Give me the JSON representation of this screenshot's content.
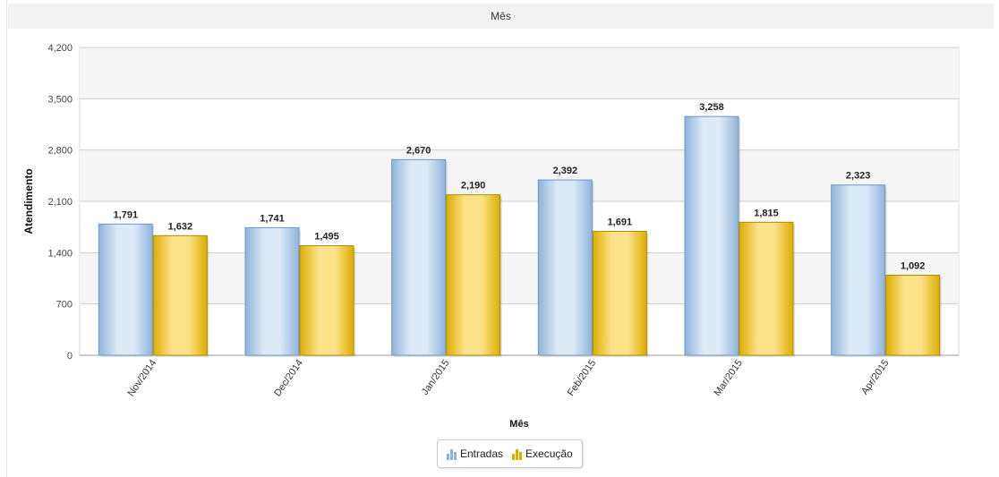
{
  "header": {
    "title": "Mês"
  },
  "colors": {
    "entradas_light": "#dceaf7",
    "entradas_dark": "#8fb4da",
    "entradas_border": "#6f97c2",
    "execucao_light": "#fce38a",
    "execucao_dark": "#dcae00",
    "execucao_border": "#b08a00",
    "plot_band": "#f5f5f5",
    "grid": "#cfcfcf"
  },
  "legend": {
    "entradas_label": "Entradas",
    "entradas_icon": "bar-chart-icon",
    "execucao_label": "Execução",
    "execucao_icon": "bar-chart-icon"
  },
  "chart_data": {
    "type": "bar",
    "title": "",
    "xlabel": "Mês",
    "ylabel": "Atendimento",
    "categories": [
      "Nov/2014",
      "Dec/2014",
      "Jan/2015",
      "Feb/2015",
      "Mar/2015",
      "Apr/2015"
    ],
    "series": [
      {
        "name": "Entradas",
        "values": [
          1791,
          1741,
          2670,
          2392,
          3258,
          2323
        ]
      },
      {
        "name": "Execução",
        "values": [
          1632,
          1495,
          2190,
          1691,
          1815,
          1092
        ]
      }
    ],
    "ylim": [
      0,
      4200
    ],
    "yticks": [
      0,
      700,
      1400,
      2100,
      2800,
      3500,
      4200
    ],
    "ytick_labels": [
      "0",
      "700",
      "1,400",
      "2,100",
      "2,800",
      "3,500",
      "4,200"
    ],
    "data_labels": [
      [
        "1,791",
        "1,741",
        "2,670",
        "2,392",
        "3,258",
        "2,323"
      ],
      [
        "1,632",
        "1,495",
        "2,190",
        "1,691",
        "1,815",
        "1,092"
      ]
    ],
    "grid": true,
    "legend_position": "bottom-center"
  }
}
